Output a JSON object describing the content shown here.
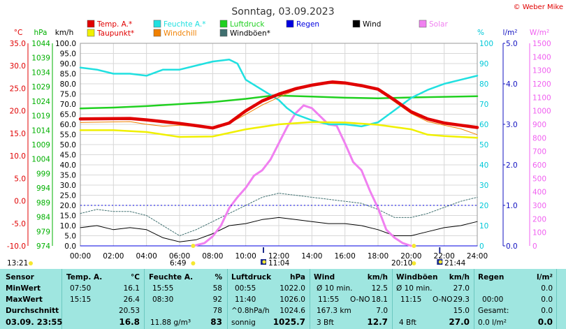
{
  "chart_data": {
    "type": "line",
    "title": "Sonntag, 03.09.2023",
    "copyright": "© Weber Mike",
    "x_ticks": [
      "00:00",
      "02:00",
      "04:00",
      "06:00",
      "08:00",
      "10:00",
      "12:00",
      "14:00",
      "16:00",
      "18:00",
      "20:00",
      "22:00",
      "24:00"
    ],
    "axes": {
      "temp": {
        "label": "°C",
        "min": -10,
        "max": 35,
        "ticks": [
          "35.0",
          "30.0",
          "25.0",
          "20.0",
          "15.0",
          "10.0",
          "5.0",
          "0.0",
          "-5.0",
          "-10.0"
        ],
        "color": "#e00000"
      },
      "pressure": {
        "label": "hPa",
        "min": 974,
        "max": 1044,
        "ticks": [
          "1044",
          "1039",
          "1034",
          "1029",
          "1024",
          "1019",
          "1014",
          "1009",
          "1004",
          "999",
          "994",
          "989",
          "984",
          "979",
          "974"
        ],
        "color": "#00b000"
      },
      "wind": {
        "label": "km/h",
        "min": 0,
        "max": 100,
        "ticks": [
          "100.0",
          "95.0",
          "90.0",
          "85.0",
          "80.0",
          "75.0",
          "70.0",
          "65.0",
          "60.0",
          "55.0",
          "50.0",
          "45.0",
          "40.0",
          "35.0",
          "30.0",
          "25.0",
          "20.0",
          "15.0",
          "10.0",
          "5.0",
          "0.0"
        ],
        "color": "#000000"
      },
      "humidity": {
        "label": "%",
        "min": 0,
        "max": 100,
        "ticks": [
          "100",
          "90",
          "80",
          "70",
          "60",
          "50",
          "40",
          "30",
          "20",
          "10",
          "0"
        ],
        "color": "#00c8d8"
      },
      "rain": {
        "label": "l/m²",
        "min": 0,
        "max": 5,
        "ticks": [
          "5.0",
          "4.0",
          "3.0",
          "2.0",
          "1.0",
          "0.0"
        ],
        "color": "#1010c0"
      },
      "solar": {
        "label": "W/m²",
        "min": 0,
        "max": 1500,
        "ticks": [
          "1500",
          "1400",
          "1300",
          "1200",
          "1100",
          "1000",
          "900",
          "800",
          "700",
          "600",
          "500",
          "400",
          "300",
          "200",
          "100",
          "0"
        ],
        "color": "#f060f0"
      }
    },
    "legend": [
      {
        "name": "Temp. A.*",
        "color": "#e00000"
      },
      {
        "name": "Feuchte A.*",
        "color": "#20e0e0"
      },
      {
        "name": "Luftdruck",
        "color": "#20d020"
      },
      {
        "name": "Regen",
        "color": "#0000e0"
      },
      {
        "name": "Wind",
        "color": "#000000"
      },
      {
        "name": "Solar",
        "color": "#f080f0"
      },
      {
        "name": "Taupunkt*",
        "color": "#f0f000"
      },
      {
        "name": "Windchill",
        "color": "#f08000"
      },
      {
        "name": "Windböen*",
        "color": "#407070"
      }
    ],
    "series": [
      {
        "name": "Temp. A.*",
        "axis": "temp",
        "x": [
          0,
          3,
          4,
          5,
          6,
          7,
          8,
          9,
          10,
          11,
          12,
          13,
          14,
          15,
          15.25,
          16,
          17,
          18,
          19,
          20,
          21,
          22,
          23,
          24
        ],
        "values": [
          18.2,
          18.3,
          18.0,
          17.6,
          17.2,
          16.7,
          16.2,
          17.3,
          20.0,
          22.2,
          23.7,
          24.9,
          25.7,
          26.3,
          26.4,
          26.2,
          25.6,
          24.8,
          22.4,
          19.8,
          18.2,
          17.3,
          16.8,
          16.3
        ]
      },
      {
        "name": "Taupunkt*",
        "axis": "temp",
        "x": [
          0,
          2,
          4,
          6,
          8,
          10,
          12,
          14,
          16,
          18,
          20,
          21,
          22,
          24
        ],
        "values": [
          15.7,
          15.7,
          15.3,
          14.2,
          14.3,
          15.9,
          17.0,
          17.5,
          17.4,
          16.9,
          15.9,
          14.7,
          14.4,
          14.0
        ]
      },
      {
        "name": "Feuchte A.*",
        "axis": "humidity",
        "x": [
          0,
          1,
          2,
          3,
          4,
          5,
          6,
          7,
          8,
          9,
          9.5,
          10,
          11,
          12,
          12.5,
          13,
          14,
          15,
          16,
          17,
          18,
          19,
          20,
          21,
          22,
          23,
          24
        ],
        "values": [
          88,
          87,
          85,
          85,
          84,
          87,
          87,
          89,
          91,
          92,
          90,
          82,
          77,
          72,
          68,
          65,
          62,
          60,
          60,
          59,
          61,
          67,
          73,
          77,
          80,
          82,
          84
        ]
      },
      {
        "name": "Luftdruck",
        "axis": "pressure",
        "x": [
          0,
          2,
          4,
          6,
          8,
          10,
          11.67,
          14,
          16,
          18,
          20,
          22,
          24
        ],
        "values": [
          1021.5,
          1021.8,
          1022.3,
          1023.0,
          1023.7,
          1024.8,
          1026.0,
          1025.6,
          1025.2,
          1025.0,
          1025.3,
          1025.5,
          1025.7
        ]
      },
      {
        "name": "Solar",
        "axis": "solar",
        "x": [
          6.8,
          7,
          7.5,
          8,
          8.5,
          9,
          9.5,
          10,
          10.5,
          11,
          11.5,
          12,
          12.5,
          13,
          13.5,
          14,
          14.5,
          15,
          15.5,
          16,
          16.5,
          17,
          17.5,
          18,
          18.5,
          19,
          19.5,
          20
        ],
        "values": [
          0,
          5,
          20,
          70,
          150,
          280,
          360,
          430,
          520,
          560,
          640,
          760,
          880,
          980,
          1040,
          1020,
          960,
          900,
          890,
          760,
          620,
          560,
          410,
          280,
          120,
          60,
          20,
          0
        ]
      },
      {
        "name": "Wind",
        "axis": "wind",
        "x": [
          0,
          1,
          2,
          3,
          4,
          5,
          6,
          7,
          8,
          9,
          10,
          11,
          12,
          13,
          14,
          15,
          16,
          17,
          18,
          19,
          20,
          21,
          22,
          23,
          24
        ],
        "values": [
          9,
          10,
          8,
          9,
          8,
          4,
          2,
          3,
          6,
          10,
          11,
          13,
          14,
          13,
          12,
          11,
          11,
          10,
          8,
          5,
          5,
          7,
          9,
          10,
          12
        ]
      },
      {
        "name": "Windböen*",
        "axis": "wind",
        "x": [
          0,
          1,
          2,
          3,
          4,
          5,
          6,
          7,
          8,
          9,
          10,
          11,
          12,
          13,
          14,
          15,
          16,
          17,
          18,
          19,
          20,
          21,
          22,
          23,
          24
        ],
        "values": [
          16,
          18,
          17,
          17,
          15,
          10,
          5,
          8,
          12,
          16,
          20,
          24,
          26,
          25,
          24,
          23,
          22,
          21,
          18,
          14,
          14,
          16,
          19,
          22,
          24
        ]
      },
      {
        "name": "Windchill",
        "axis": "temp",
        "x": [
          0,
          3,
          4,
          5,
          6,
          7,
          8,
          9,
          10,
          11,
          12,
          13,
          14,
          15,
          16,
          17,
          18,
          19,
          20,
          21,
          22,
          23,
          24
        ],
        "values": [
          17.4,
          17.6,
          17.0,
          16.6,
          16.8,
          16.5,
          16.2,
          17.2,
          19.2,
          21.3,
          23.0,
          24.6,
          25.6,
          26.1,
          25.9,
          25.5,
          24.6,
          22.0,
          19.4,
          17.6,
          16.8,
          16.0,
          14.7
        ]
      },
      {
        "name": "Regen",
        "axis": "rain",
        "x": [
          0,
          24
        ],
        "values": [
          0,
          0
        ]
      }
    ],
    "markers": [
      {
        "label": "6:49",
        "x": 6.82
      },
      {
        "label": "13:21"
      },
      {
        "label": "20:10",
        "x": 20.17
      },
      {
        "label": "11:04",
        "x": 11.07
      },
      {
        "label": "21:44",
        "x": 21.73
      }
    ],
    "grid": true
  },
  "table": {
    "row_labels": [
      "Sensor",
      "MinWert",
      "MaxWert",
      "Durchschnitt",
      "03.09.  23:55"
    ],
    "temp": {
      "header": "Temp. A.",
      "unit": "°C",
      "min_time": "07:50",
      "min": "16.1",
      "max_time": "15:15",
      "max": "26.4",
      "avg": "20.53",
      "current": "16.8"
    },
    "hum": {
      "header": "Feuchte A.",
      "unit": "%",
      "min_time": "15:55",
      "min": "58",
      "max_time": "08:30",
      "max": "92",
      "avg": "78",
      "extra": "11.88 g/m³",
      "current": "83"
    },
    "press": {
      "header": "Luftdruck",
      "unit": "hPa",
      "min_time": "00:55",
      "min": "1022.0",
      "max_time": "11:40",
      "max": "1026.0",
      "avg_label": "^0.8hPa/h",
      "avg": "1024.6",
      "cur_label": "sonnig",
      "current": "1025.7"
    },
    "wind": {
      "header": "Wind",
      "unit": "km/h",
      "r1_label": "Ø 10 min.",
      "r1": "12.5",
      "r2_label": "11:55",
      "r2_dir": "O-NO",
      "r2": "18.1",
      "r3_label": "167.3 km",
      "r3": "7.0",
      "cur_label": "3 Bft",
      "current": "12.7"
    },
    "gust": {
      "header": "Windböen",
      "unit": "km/h",
      "r1_label": "Ø 10 min.",
      "r1": "27.0",
      "r2_label": "11:15",
      "r2_dir": "O-NO",
      "r2": "29.3",
      "r3": "15.0",
      "cur_label": "4 Bft",
      "current": "27.0"
    },
    "rain": {
      "header": "Regen",
      "unit": "l/m²",
      "r1": "0.0",
      "r2_label": "00:00",
      "r2": "0.0",
      "r3_label": "Gesamt:",
      "r3": "0.0",
      "cur_label": "0.0 l/m²",
      "current": "0.0"
    }
  }
}
